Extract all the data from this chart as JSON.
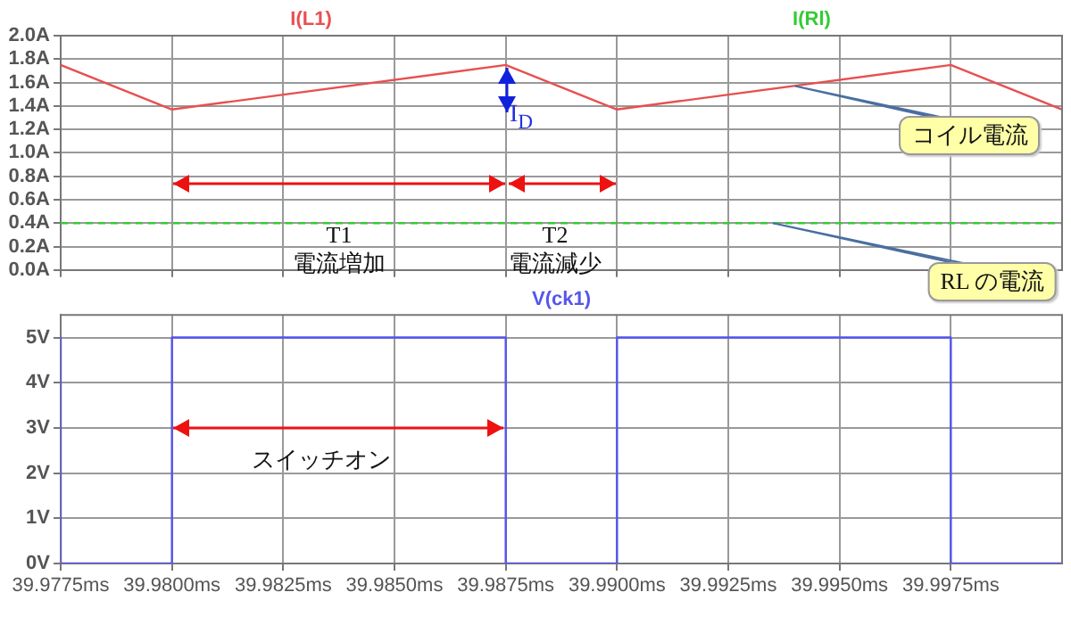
{
  "chart_data": [
    {
      "type": "line",
      "series": [
        {
          "name": "I(L1)",
          "color": "#e85050",
          "x": [
            39.9775,
            39.98,
            39.9875,
            39.99,
            39.9975,
            40.0
          ],
          "values": [
            1.75,
            1.37,
            1.75,
            1.37,
            1.75,
            1.37
          ]
        },
        {
          "name": "I(Rl)",
          "color": "#33cc33",
          "line_style": "dashed",
          "x": [
            39.9775,
            40.0
          ],
          "values": [
            0.4,
            0.4
          ]
        }
      ],
      "xlim": [
        39.9775,
        40.0
      ],
      "xticks": [
        {
          "value": 39.9775,
          "label": null
        },
        {
          "value": 39.98,
          "label": null
        },
        {
          "value": 39.9825,
          "label": null
        },
        {
          "value": 39.985,
          "label": null
        },
        {
          "value": 39.9875,
          "label": null
        },
        {
          "value": 39.99,
          "label": null
        },
        {
          "value": 39.9925,
          "label": null
        },
        {
          "value": 39.995,
          "label": null
        },
        {
          "value": 39.9975,
          "label": null
        }
      ],
      "ylim": [
        0,
        2
      ],
      "yticks": [
        {
          "value": 0,
          "label": "0.0A"
        },
        {
          "value": 0.2,
          "label": "0.2A"
        },
        {
          "value": 0.4,
          "label": "0.4A"
        },
        {
          "value": 0.6,
          "label": "0.6A"
        },
        {
          "value": 0.8,
          "label": "0.8A"
        },
        {
          "value": 1.0,
          "label": "1.0A"
        },
        {
          "value": 1.2,
          "label": "1.2A"
        },
        {
          "value": 1.4,
          "label": "1.4A"
        },
        {
          "value": 1.6,
          "label": "1.6A"
        },
        {
          "value": 1.8,
          "label": "1.8A"
        },
        {
          "value": 2.0,
          "label": "2.0A"
        }
      ],
      "tick_labels": "y",
      "grid": true,
      "legend": "top",
      "annotations": [
        "T1\n電流増加",
        "T2\n電流減少",
        "I$_{D}$",
        {
          "text": "コイル電流",
          "x": 39.994,
          "y": 1.57
        },
        {
          "text": "RL の電流",
          "x": 39.9935,
          "y": 0.4
        }
      ]
    },
    {
      "type": "line",
      "series": [
        {
          "name": "V(ck1)",
          "color": "#5555ee",
          "x": [
            39.9775,
            39.9775,
            39.98,
            39.98,
            39.9875,
            39.9875,
            39.99,
            39.99,
            39.9975,
            39.9975,
            40.0
          ],
          "values": [
            5,
            0,
            0,
            5,
            5,
            0,
            0,
            5,
            5,
            0,
            0
          ]
        }
      ],
      "xlim": [
        39.9775,
        40.0
      ],
      "xticks": [
        {
          "value": 39.9775,
          "label": "39.9775ms"
        },
        {
          "value": 39.98,
          "label": "39.9800ms"
        },
        {
          "value": 39.9825,
          "label": "39.9825ms"
        },
        {
          "value": 39.985,
          "label": "39.9850ms"
        },
        {
          "value": 39.9875,
          "label": "39.9875ms"
        },
        {
          "value": 39.99,
          "label": "39.9900ms"
        },
        {
          "value": 39.9925,
          "label": "39.9925ms"
        },
        {
          "value": 39.995,
          "label": "39.9950ms"
        },
        {
          "value": 39.9975,
          "label": "39.9975ms"
        }
      ],
      "ylim": [
        0,
        5.5
      ],
      "yticks": [
        {
          "value": 0,
          "label": "0V"
        },
        {
          "value": 1,
          "label": "1V"
        },
        {
          "value": 2,
          "label": "2V"
        },
        {
          "value": 3,
          "label": "3V"
        },
        {
          "value": 4,
          "label": "4V"
        },
        {
          "value": 5,
          "label": "5V"
        }
      ],
      "grid": true,
      "legend": "top",
      "annotations": [
        "スイッチオン"
      ]
    }
  ]
}
